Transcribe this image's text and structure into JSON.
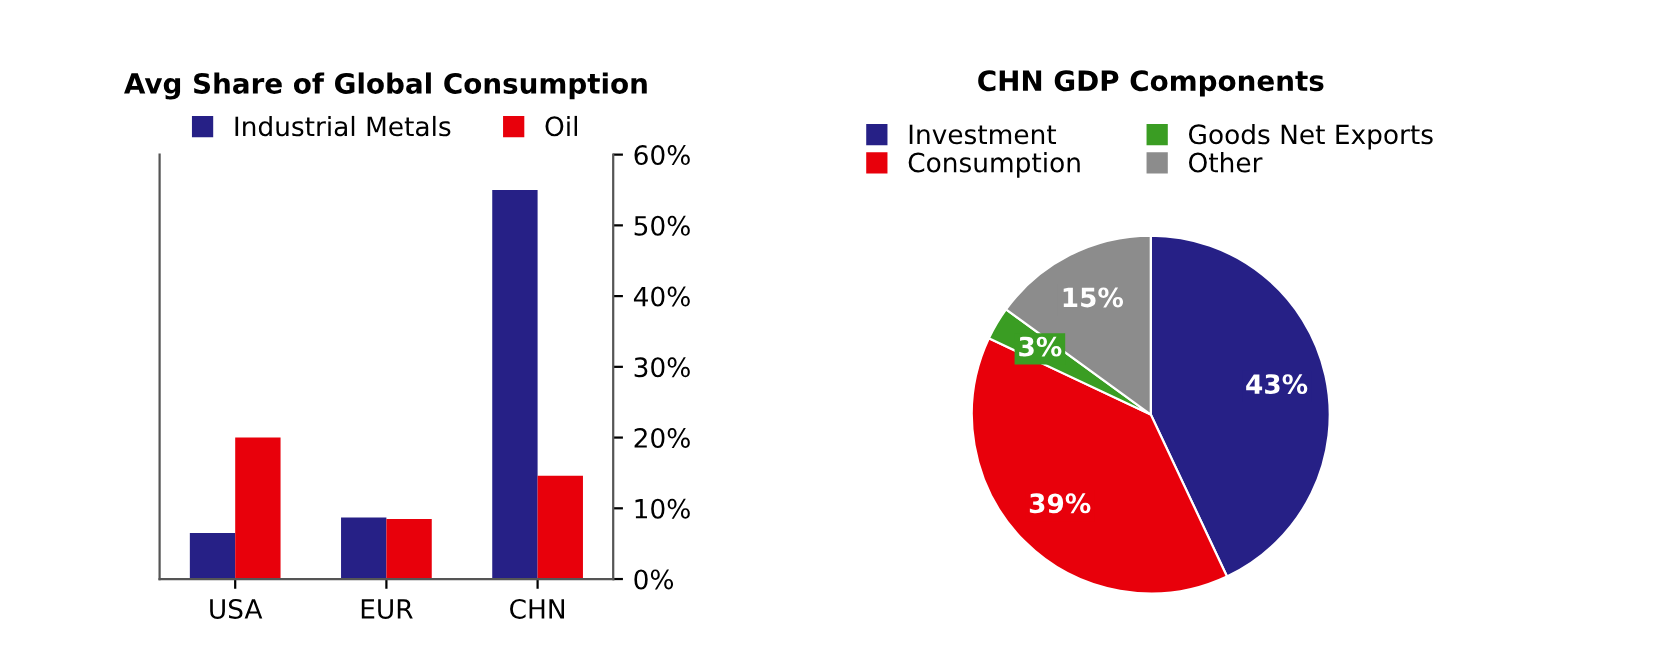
{
  "chart_data": [
    {
      "type": "bar",
      "title": "Avg Share of Global Consumption",
      "categories": [
        "USA",
        "EUR",
        "CHN"
      ],
      "series": [
        {
          "name": "Industrial Metals",
          "color": "#262086",
          "values": [
            6.5,
            8.7,
            55
          ]
        },
        {
          "name": "Oil",
          "color": "#e8000b",
          "values": [
            20,
            8.5,
            14.6
          ]
        }
      ],
      "ylim": [
        0,
        60
      ],
      "yticks": [
        {
          "value": 0,
          "label": "0%"
        },
        {
          "value": 10,
          "label": "10%"
        },
        {
          "value": 20,
          "label": "20%"
        },
        {
          "value": 30,
          "label": "30%"
        },
        {
          "value": 40,
          "label": "40%"
        },
        {
          "value": 50,
          "label": "50%"
        },
        {
          "value": 60,
          "label": "60%"
        }
      ],
      "grid": false,
      "legend": "top"
    },
    {
      "type": "pie",
      "title": "CHN GDP Components",
      "categories": [
        "Investment",
        "Consumption",
        "Goods Net Exports",
        "Other"
      ],
      "values": [
        43,
        39,
        3,
        15
      ],
      "colors": [
        "#262086",
        "#e8000b",
        "#3a9d23",
        "#8c8c8c"
      ],
      "value_labels": [
        "43%",
        "39%",
        "3%",
        "15%"
      ],
      "legend": "top"
    }
  ]
}
